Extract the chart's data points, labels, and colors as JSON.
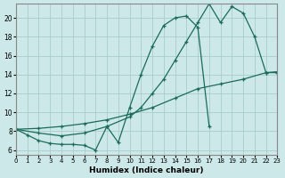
{
  "xlabel": "Humidex (Indice chaleur)",
  "bg_color": "#cce8e8",
  "grid_color": "#aacccc",
  "line_color": "#1a6b5a",
  "xlim": [
    0,
    23
  ],
  "ylim": [
    5.5,
    21.5
  ],
  "xticks": [
    0,
    1,
    2,
    3,
    4,
    5,
    6,
    7,
    8,
    9,
    10,
    11,
    12,
    13,
    14,
    15,
    16,
    17,
    18,
    19,
    20,
    21,
    22,
    23
  ],
  "yticks": [
    6,
    8,
    10,
    12,
    14,
    16,
    18,
    20
  ],
  "line1_x": [
    0,
    1,
    2,
    3,
    4,
    5,
    6,
    7,
    8,
    9,
    10,
    11,
    12,
    13,
    14,
    15,
    16,
    17
  ],
  "line1_y": [
    8.2,
    7.6,
    7.0,
    6.7,
    6.6,
    6.6,
    6.5,
    6.0,
    8.5,
    6.8,
    10.5,
    14.0,
    17.0,
    19.2,
    20.0,
    20.2,
    19.0,
    8.5
  ],
  "line2_x": [
    0,
    2,
    4,
    6,
    8,
    10,
    11,
    12,
    13,
    14,
    15,
    16,
    17,
    18,
    19,
    20,
    21,
    22,
    23
  ],
  "line2_y": [
    8.2,
    7.8,
    7.5,
    7.8,
    8.5,
    9.5,
    10.5,
    12.0,
    13.5,
    15.5,
    17.5,
    19.5,
    21.5,
    19.5,
    21.2,
    20.5,
    18.0,
    14.2,
    14.2
  ],
  "line3_x": [
    0,
    2,
    4,
    6,
    8,
    10,
    12,
    14,
    16,
    18,
    20,
    22,
    23
  ],
  "line3_y": [
    8.2,
    8.3,
    8.5,
    8.8,
    9.2,
    9.8,
    10.5,
    11.5,
    12.5,
    13.0,
    13.5,
    14.2,
    14.3
  ]
}
